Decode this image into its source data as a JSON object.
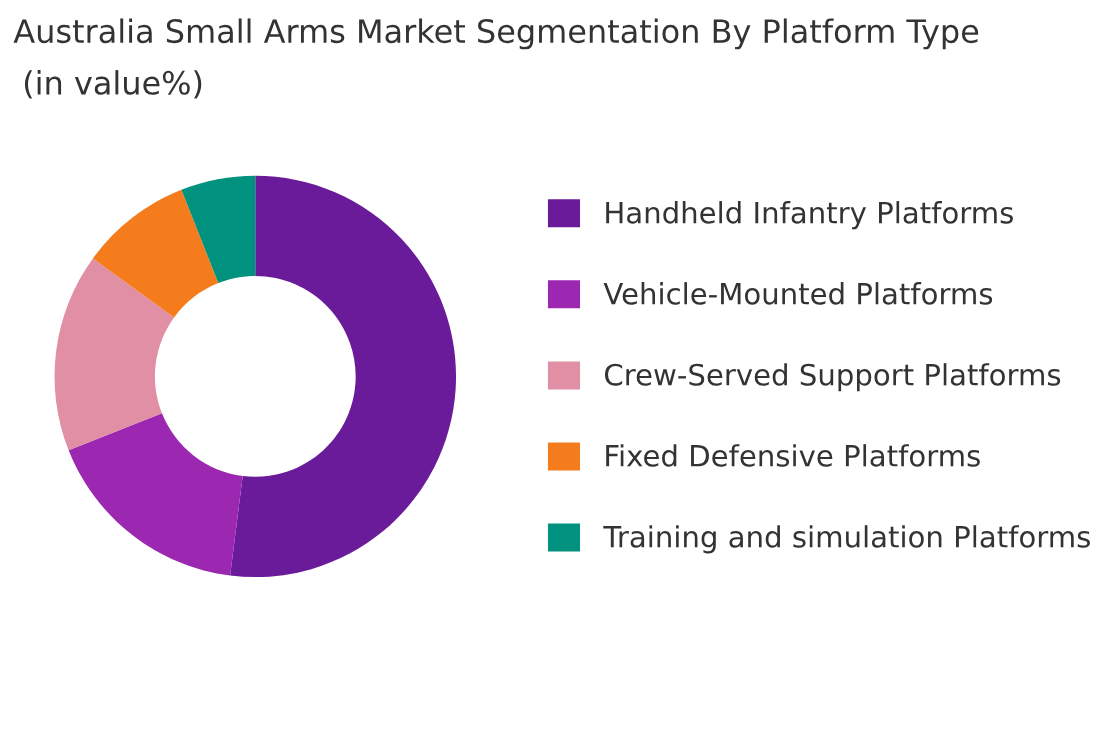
{
  "chart_data": {
    "type": "donut",
    "title": "Australia Small Arms Market Segmentation By Platform Type",
    "subtitle": "(in value%)",
    "categories": [
      "Handheld Infantry Platforms",
      "Vehicle-Mounted Platforms",
      "Crew-Served Support Platforms",
      "Fixed Defensive Platforms",
      "Training and simulation Platforms"
    ],
    "values": [
      52,
      17,
      16,
      9,
      6
    ],
    "colors": [
      "#6a1b9a",
      "#9c27b0",
      "#e08fa4",
      "#f57c1c",
      "#00917f"
    ],
    "legend": "right"
  }
}
